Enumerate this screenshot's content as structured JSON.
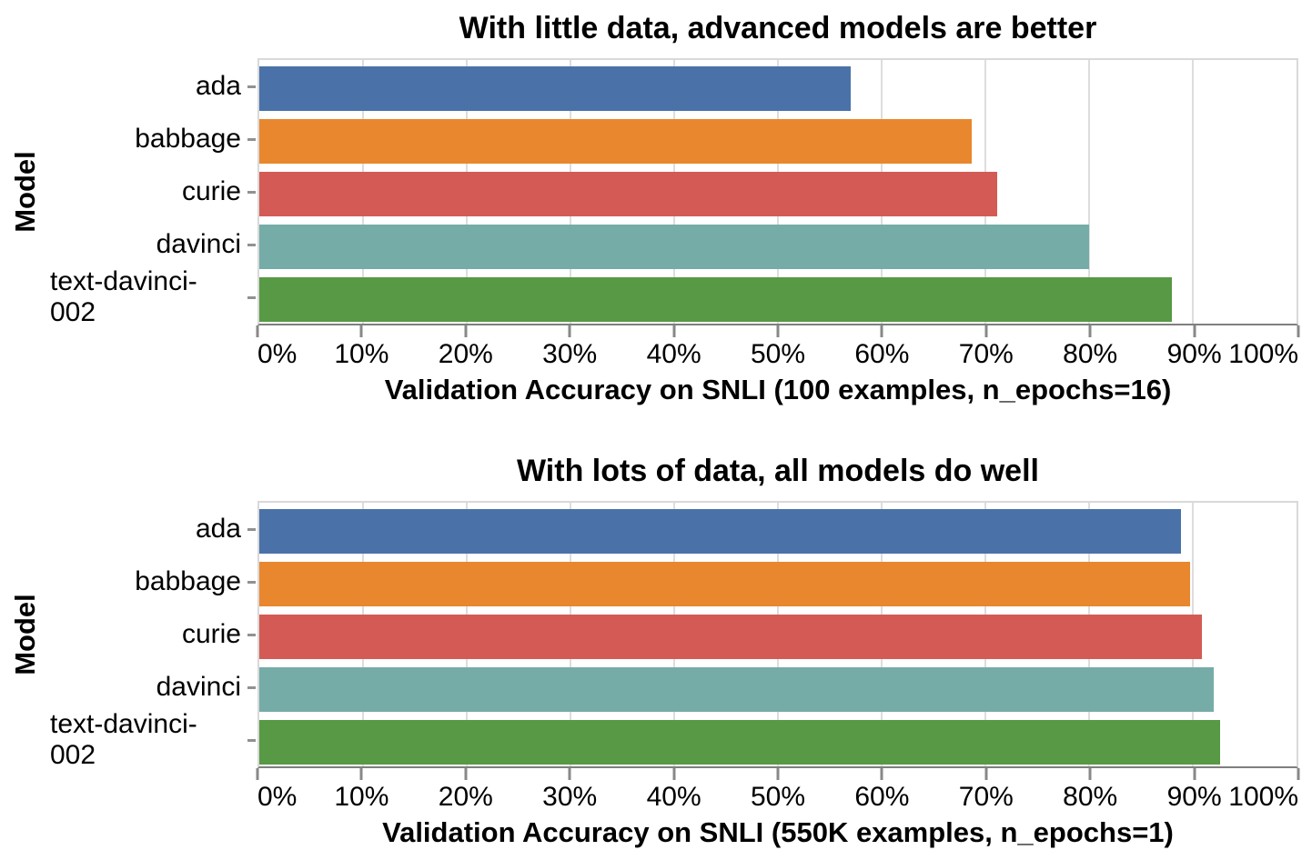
{
  "colors": {
    "bar_palette": [
      "#4a72a8",
      "#e8872e",
      "#d45b55",
      "#76aca8",
      "#579944"
    ],
    "grid": "#dddddd",
    "plot_border": "#d9d9d9",
    "axis_line": "#7f7f7f",
    "tick": "#888888",
    "text": "#000000",
    "background": "#ffffff"
  },
  "chart_data": [
    {
      "type": "bar",
      "orientation": "horizontal",
      "title": "With little data, advanced models are better",
      "ylabel": "Model",
      "xlabel": "Validation Accuracy on SNLI (100 examples, n_epochs=16)",
      "categories": [
        "ada",
        "babbage",
        "curie",
        "davinci",
        "text-davinci-002"
      ],
      "values": [
        57,
        68.7,
        71.1,
        80,
        88
      ],
      "xlim": [
        0,
        100
      ],
      "xticks": [
        "0%",
        "10%",
        "20%",
        "30%",
        "40%",
        "50%",
        "60%",
        "70%",
        "80%",
        "90%",
        "100%"
      ],
      "grid": true,
      "legend": "none"
    },
    {
      "type": "bar",
      "orientation": "horizontal",
      "title": "With lots of data, all models do well",
      "ylabel": "Model",
      "xlabel": "Validation Accuracy on SNLI (550K examples, n_epochs=1)",
      "categories": [
        "ada",
        "babbage",
        "curie",
        "davinci",
        "text-davinci-002"
      ],
      "values": [
        88.9,
        89.7,
        90.9,
        92,
        92.6
      ],
      "xlim": [
        0,
        100
      ],
      "xticks": [
        "0%",
        "10%",
        "20%",
        "30%",
        "40%",
        "50%",
        "60%",
        "70%",
        "80%",
        "90%",
        "100%"
      ],
      "grid": true,
      "legend": "none"
    }
  ]
}
